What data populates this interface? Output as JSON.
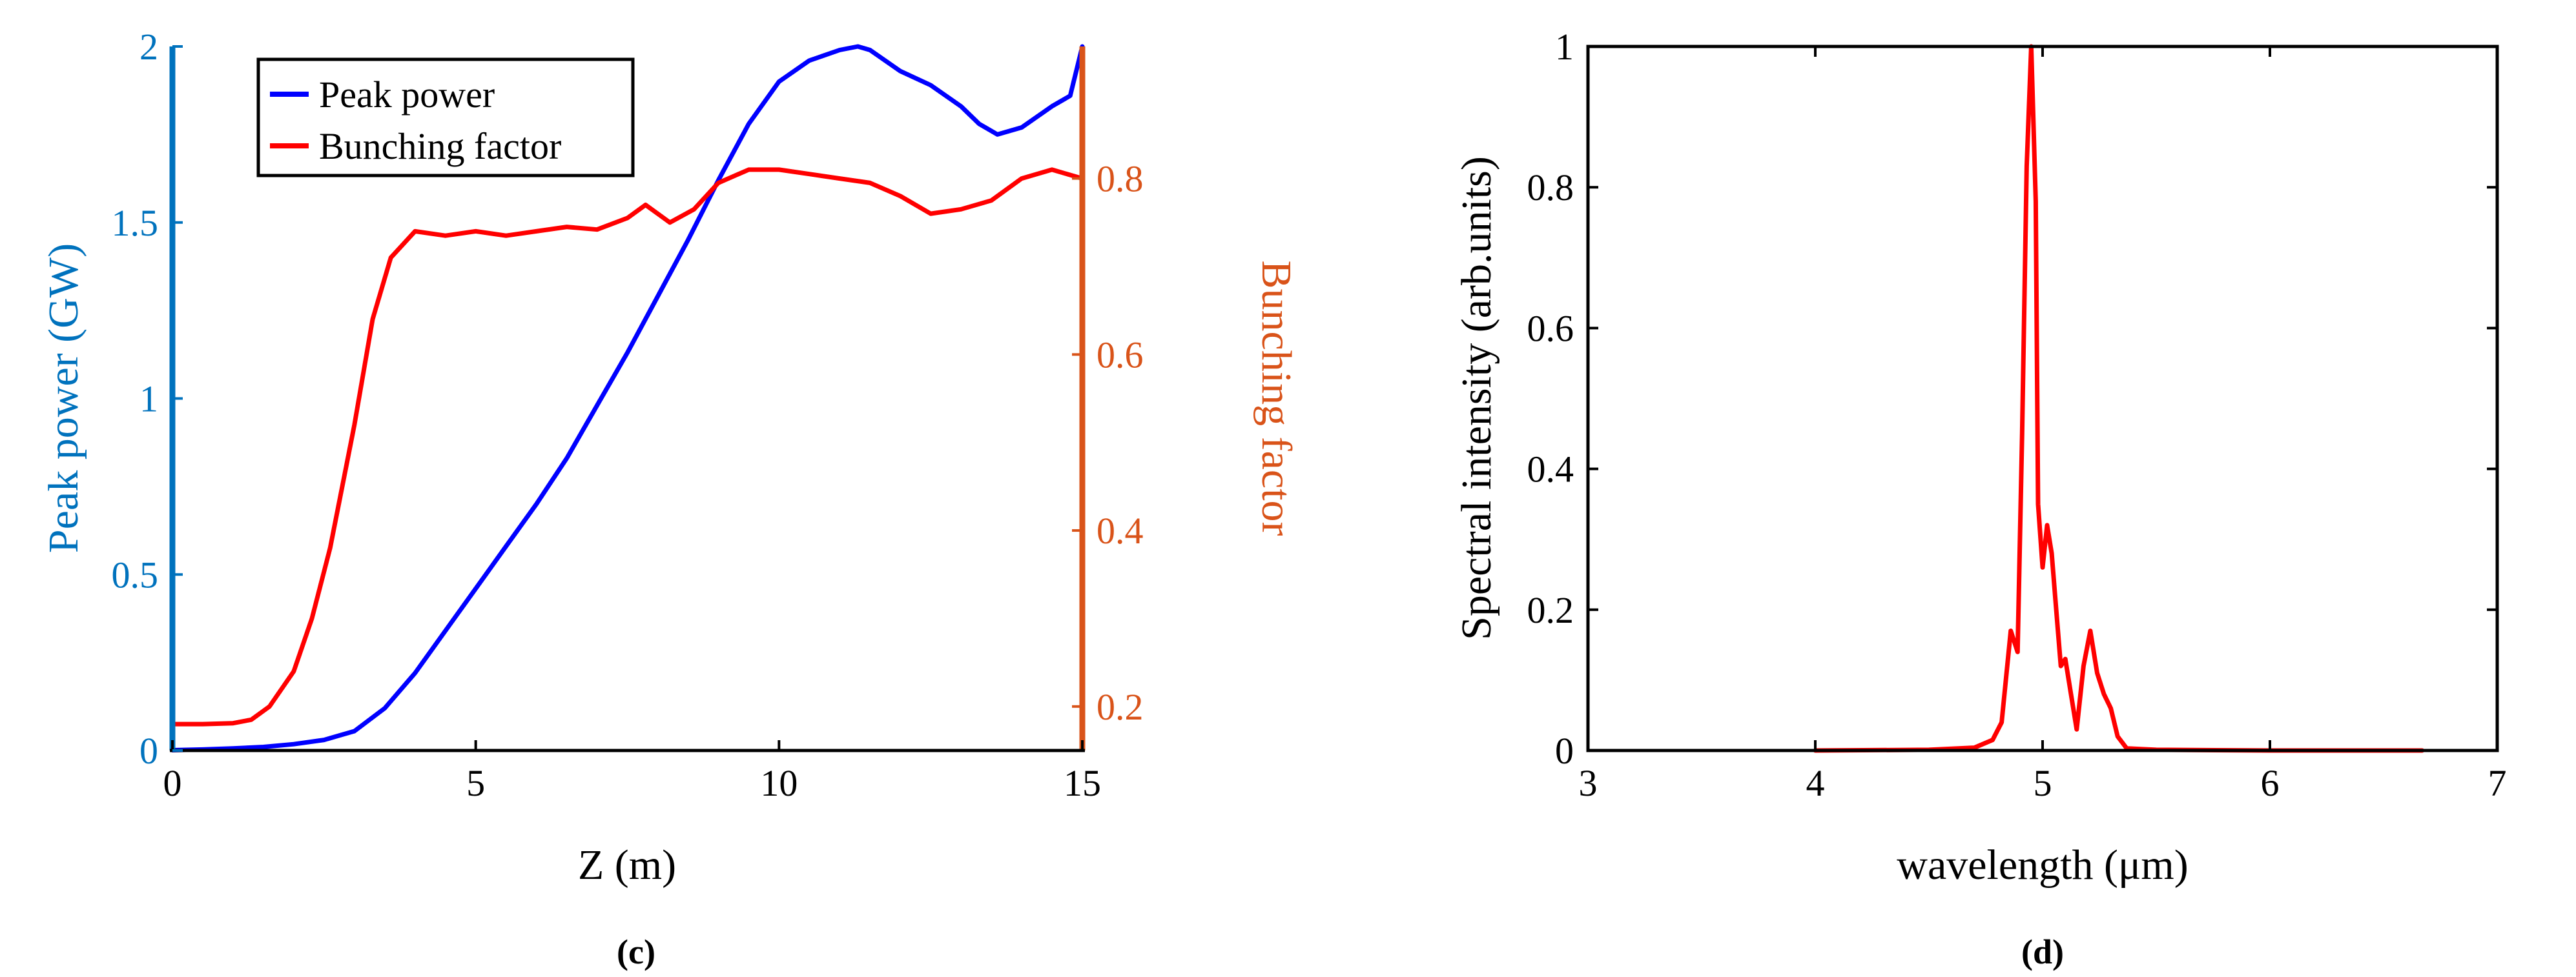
{
  "colors": {
    "blue": "#0000ff",
    "red": "#ff0000",
    "left_axis": "#0072bd",
    "right_axis": "#d95319",
    "black": "#000000"
  },
  "panels": {
    "c": {
      "label": "(c)"
    },
    "d": {
      "label": "(d)"
    }
  },
  "chart_data": [
    {
      "type": "line",
      "panel": "c",
      "xlabel": "Z (m)",
      "ylabel": "Peak power (GW)",
      "y2label": "Bunching factor",
      "xlim": [
        0,
        15
      ],
      "ylim": [
        0,
        2
      ],
      "y2lim": [
        0.15,
        0.95
      ],
      "xticks": [
        0,
        5,
        10,
        15
      ],
      "yticks": [
        0,
        0.5,
        1,
        1.5,
        2
      ],
      "y2ticks": [
        0.2,
        0.4,
        0.6,
        0.8
      ],
      "grid": false,
      "legend": {
        "position": "top-left",
        "entries": [
          "Peak power",
          "Bunching factor"
        ]
      },
      "series": [
        {
          "name": "Peak power",
          "axis": "left",
          "color": "#0000ff",
          "x": [
            0,
            0.5,
            1,
            1.5,
            2,
            2.5,
            3,
            3.5,
            4,
            4.5,
            5,
            5.5,
            6,
            6.5,
            7,
            7.5,
            8,
            8.5,
            9,
            9.5,
            10,
            10.5,
            11,
            11.3,
            11.5,
            12,
            12.5,
            13,
            13.3,
            13.6,
            14,
            14.5,
            14.8,
            15
          ],
          "y": [
            0.001,
            0.003,
            0.006,
            0.01,
            0.018,
            0.03,
            0.055,
            0.12,
            0.22,
            0.34,
            0.46,
            0.58,
            0.7,
            0.83,
            0.98,
            1.13,
            1.29,
            1.45,
            1.62,
            1.78,
            1.9,
            1.96,
            1.99,
            2.0,
            1.99,
            1.93,
            1.89,
            1.83,
            1.78,
            1.75,
            1.77,
            1.83,
            1.86,
            2.0
          ]
        },
        {
          "name": "Bunching factor",
          "axis": "right",
          "color": "#ff0000",
          "x": [
            0,
            0.5,
            1,
            1.3,
            1.6,
            2,
            2.3,
            2.6,
            3,
            3.3,
            3.6,
            4,
            4.5,
            5,
            5.5,
            6,
            6.5,
            7,
            7.5,
            7.8,
            8.2,
            8.6,
            9,
            9.5,
            10,
            10.5,
            11,
            11.5,
            12,
            12.5,
            13,
            13.5,
            14,
            14.5,
            15
          ],
          "y": [
            0.18,
            0.18,
            0.181,
            0.185,
            0.2,
            0.24,
            0.3,
            0.38,
            0.52,
            0.64,
            0.71,
            0.74,
            0.735,
            0.74,
            0.735,
            0.74,
            0.745,
            0.742,
            0.755,
            0.77,
            0.75,
            0.765,
            0.795,
            0.81,
            0.81,
            0.805,
            0.8,
            0.795,
            0.78,
            0.76,
            0.765,
            0.775,
            0.8,
            0.81,
            0.8
          ]
        }
      ]
    },
    {
      "type": "line",
      "panel": "d",
      "xlabel": "wavelength (μm)",
      "ylabel": "Spectral intensity (arb.units)",
      "xlim": [
        3,
        7
      ],
      "ylim": [
        0,
        1
      ],
      "xticks": [
        3,
        4,
        5,
        6,
        7
      ],
      "yticks": [
        0,
        0.2,
        0.4,
        0.6,
        0.8,
        1
      ],
      "grid": false,
      "series": [
        {
          "color": "#ff0000",
          "x": [
            4.0,
            4.5,
            4.7,
            4.78,
            4.82,
            4.86,
            4.89,
            4.91,
            4.93,
            4.95,
            4.97,
            4.98,
            5.0,
            5.02,
            5.04,
            5.06,
            5.08,
            5.1,
            5.12,
            5.15,
            5.18,
            5.21,
            5.24,
            5.27,
            5.3,
            5.33,
            5.37,
            5.5,
            6.0,
            6.67
          ],
          "y": [
            0.0,
            0.001,
            0.004,
            0.015,
            0.04,
            0.17,
            0.14,
            0.45,
            0.83,
            1.0,
            0.78,
            0.35,
            0.26,
            0.32,
            0.28,
            0.2,
            0.12,
            0.13,
            0.09,
            0.03,
            0.12,
            0.17,
            0.11,
            0.08,
            0.06,
            0.02,
            0.003,
            0.001,
            0.0,
            0.0
          ]
        }
      ]
    }
  ]
}
